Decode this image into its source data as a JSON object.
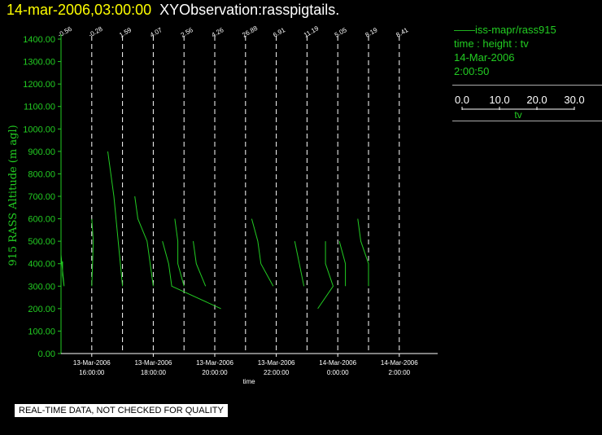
{
  "header": {
    "datetime": "14-mar-2006,03:00:00",
    "title": "XYObservation:rasspigtails."
  },
  "legend": {
    "series": "iss-mapr/rass915",
    "vars": "time : height : tv",
    "date": "14-Mar-2006",
    "time": "2:00:50",
    "scale_ticks": [
      "0.0",
      "10.0",
      "20.0",
      "30.0"
    ],
    "scale_label": "tv"
  },
  "notice": "REAL-TIME DATA, NOT CHECKED FOR QUALITY",
  "colors": {
    "data": "#22cc22",
    "axis": "#ffffff",
    "header_date": "#ffff00",
    "text": "#ffffff"
  },
  "chart_data": {
    "type": "line",
    "ylabel": "915 RASS Altitude (m agl)",
    "xlabel": "time",
    "ylim": [
      0,
      1400
    ],
    "yticks": [
      "0.00",
      "100.00",
      "200.00",
      "300.00",
      "400.00",
      "500.00",
      "600.00",
      "700.00",
      "800.00",
      "900.00",
      "1000.00",
      "1100.00",
      "1200.00",
      "1300.00",
      "1400.00"
    ],
    "xticks": [
      {
        "date": "13-Mar-2006",
        "time": "16:00:00"
      },
      {
        "date": "13-Mar-2006",
        "time": "18:00:00"
      },
      {
        "date": "13-Mar-2006",
        "time": "20:00:00"
      },
      {
        "date": "13-Mar-2006",
        "time": "22:00:00"
      },
      {
        "date": "14-Mar-2006",
        "time": "0:00:00"
      },
      {
        "date": "14-Mar-2006",
        "time": "2:00:00"
      }
    ],
    "profiles": [
      {
        "time": "13-Mar-2006 15:00",
        "label": "-0.56"
      },
      {
        "time": "13-Mar-2006 16:00",
        "label": "-0.28"
      },
      {
        "time": "13-Mar-2006 17:00",
        "label": "1.59"
      },
      {
        "time": "13-Mar-2006 18:00",
        "label": "4.07"
      },
      {
        "time": "13-Mar-2006 19:00",
        "label": "2.56"
      },
      {
        "time": "13-Mar-2006 20:00",
        "label": "4.26"
      },
      {
        "time": "13-Mar-2006 21:00",
        "label": "26.88"
      },
      {
        "time": "13-Mar-2006 22:00",
        "label": "6.91"
      },
      {
        "time": "13-Mar-2006 23:00",
        "label": "11.19"
      },
      {
        "time": "14-Mar-2006 0:00",
        "label": "5.05"
      },
      {
        "time": "14-Mar-2006 1:00",
        "label": "8.19"
      },
      {
        "time": "14-Mar-2006 2:00",
        "label": "8.41"
      }
    ],
    "trace_hours": [
      [
        [
          -1.0,
          320
        ],
        [
          -1.0,
          440
        ],
        [
          -0.9,
          300
        ],
        [
          -0.95,
          350
        ],
        [
          -0.95,
          410
        ]
      ],
      [
        [
          0.0,
          600
        ],
        [
          0.05,
          500
        ],
        [
          0.02,
          380
        ],
        [
          0.0,
          300
        ]
      ],
      [
        [
          0.52,
          900
        ],
        [
          0.72,
          700
        ],
        [
          1.0,
          300
        ]
      ],
      [
        [
          1.4,
          700
        ],
        [
          1.5,
          600
        ],
        [
          1.8,
          500
        ],
        [
          2.0,
          300
        ]
      ],
      [
        [
          2.3,
          500
        ],
        [
          2.5,
          400
        ],
        [
          2.6,
          300
        ],
        [
          4.2,
          200
        ]
      ],
      [
        [
          2.7,
          600
        ],
        [
          2.8,
          500
        ],
        [
          2.8,
          400
        ],
        [
          3.0,
          300
        ]
      ],
      [
        [
          3.3,
          500
        ],
        [
          3.4,
          400
        ],
        [
          3.7,
          300
        ]
      ],
      [
        [
          5.2,
          600
        ],
        [
          5.4,
          500
        ],
        [
          5.5,
          400
        ],
        [
          5.9,
          300
        ]
      ],
      [
        [
          6.6,
          500
        ],
        [
          6.9,
          300
        ]
      ],
      [
        [
          7.35,
          200
        ],
        [
          7.85,
          300
        ],
        [
          7.6,
          400
        ],
        [
          7.6,
          500
        ]
      ],
      [
        [
          8.05,
          500
        ],
        [
          8.25,
          400
        ],
        [
          8.25,
          300
        ]
      ],
      [
        [
          8.65,
          600
        ],
        [
          8.75,
          500
        ],
        [
          9.0,
          400
        ],
        [
          9.0,
          300
        ]
      ]
    ]
  }
}
